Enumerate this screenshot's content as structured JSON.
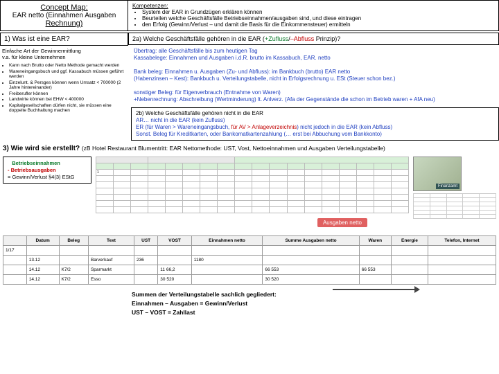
{
  "title": {
    "l1": "Concept Map:",
    "l2": "EAR netto (Einnahmen Ausgaben",
    "l3": "Rechnung)"
  },
  "komp": {
    "head": "Kompetenzen:",
    "items": [
      "System der EAR in Grundzügen erklären können",
      "Beurteilen welche Geschäftsfälle Betriebseinnahmen/ausgaben sind, und diese eintragen",
      "den Erfolg (Gewinn/Verlust – und damit die Basis für die Einkommensteuer) ermitteln"
    ]
  },
  "q1": {
    "head": "1) Was ist eine EAR?",
    "sub1": "Einfache Art der Gewinnermittlung",
    "sub2": "v.a. für kleine Unternehmen",
    "bullets": [
      "Kann nach Brutto oder Netto Methode gemacht werden",
      "Wareneingangsbuch und ggf. Kassabuch müssen geführt werden",
      "Einzelunt. & Persges können wenn Umsatz < 700000 (2 Jahre hintereinander)",
      "Freiberufler können",
      "Landwirte können bei EHW < 400000",
      "Kapitalgesellschaften dürfen nicht, sie müssen eine doppelte Buchhaltung machen"
    ]
  },
  "q2a": {
    "head_a": "2a) Welche Geschäftsfälle gehören in die EAR (",
    "zufluss": "+Zufluss",
    "sep": "/",
    "abfluss": "–Abfluss",
    "head_b": " Prinzip)?",
    "p1a": "Übertrag: alle Geschäftsfälle bis zum heutigen Tag",
    "p1b": "Kassabelege: Einnahmen und Ausgaben i.d.R. brutto im Kassabuch, EAR. netto",
    "p2a": "Bank beleg: Einnahmen u. Ausgaben (Zu- und Abfluss): im Bankbuch (brutto) EAR netto",
    "p2b": "(Habenzinsen – Kest): Bankbuch u. Verteilungstabelle, nicht in Erfolgsrechnung u. ESt (Steuer schon bez.)",
    "p3a": "sonstiger Beleg: für Eigenverbrauch (Entnahme von Waren)",
    "p3b": "+Nebenrechnung: Abschreibung (Wertminderung) lt. Anlverz. (Afa der Gegenstände die schon im Betrieb waren + AfA neu)"
  },
  "q2b": {
    "head": "2b) Welche Geschäftsfälle gehören nicht in die EAR",
    "l1a": "AR… nicht in die EAR (kein Zufluss)",
    "l2a": "ER (für Waren > Wareneingangsbuch, ",
    "l2b": "für AV > Anlageverzeichnis",
    "l2c": ") nicht jedoch in die EAR (kein Abfluss)",
    "l3a": "Sonst. Beleg für Kreditkarten, oder Bankomatkartenzahlung (… erst bei Abbuchung vom Bankkonto)"
  },
  "q3": {
    "head": "3) Wie wird sie erstellt? ",
    "sub": "(zB Hotel Restaurant Blumentritt: EAR Nettomethode: UST, Vost, Nettoeinnahmen und Ausgaben Verteilungstabelle)"
  },
  "formula": {
    "l1": "Betriebseinnahmen",
    "l2": "-   Betriebsausgaben",
    "l3": "= Gewinn/Verlust §4(3) EStG"
  },
  "ausgaben_tag": "Ausgaben netto",
  "tbl2": {
    "cols": [
      "",
      "Datum",
      "Beleg",
      "Text",
      "UST",
      "VOST",
      "Einnahmen netto",
      "Summe Ausgaben netto",
      "Waren",
      "Energie",
      "Telefon, Internet"
    ],
    "rows": [
      [
        "1/17",
        "",
        "",
        "",
        "",
        "",
        "",
        "",
        "",
        "",
        ""
      ],
      [
        "",
        "13.12",
        "",
        "Barverkauf",
        "236",
        "",
        "1180",
        "",
        "",
        "",
        ""
      ],
      [
        "",
        "14.12",
        "K7/2",
        "Sparmarkt",
        "",
        "11 66,2",
        "",
        "66 553",
        "66 553",
        "",
        ""
      ],
      [
        "",
        "14.12",
        "K7/2",
        "Esso",
        "",
        "30 520",
        "",
        "30 520",
        "",
        "",
        ""
      ]
    ]
  },
  "summary": {
    "l1": "Summen der Verteilungstabelle sachlich gegliedert:",
    "l2": "Einnahmen – Ausgaben = Gewinn/Verlust",
    "l3": "UST – VOST = Zahllast"
  },
  "colors": {
    "zufluss": "#0a7a2a",
    "abfluss": "#c00000",
    "blue": "#2040c0"
  }
}
